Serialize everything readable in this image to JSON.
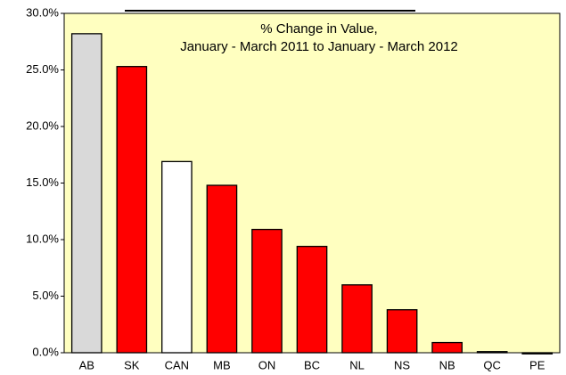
{
  "chart_data": {
    "type": "bar",
    "title": [
      "% Change in Value,",
      "January  -  March 2011 to January -  March 2012"
    ],
    "categories": [
      "AB",
      "SK",
      "CAN",
      "MB",
      "ON",
      "BC",
      "NL",
      "NS",
      "NB",
      "QC",
      "PE"
    ],
    "values": [
      28.2,
      25.3,
      16.9,
      14.8,
      10.9,
      9.4,
      6.0,
      3.8,
      0.9,
      0.1,
      -0.1
    ],
    "colors": [
      "#d9d9d9",
      "#ff0000",
      "#ffffff",
      "#ff0000",
      "#ff0000",
      "#ff0000",
      "#ff0000",
      "#ff0000",
      "#ff0000",
      "#ff0000",
      "#ff0000"
    ],
    "ylim": [
      0,
      30
    ],
    "yticks": [
      {
        "value": 0,
        "label": "0.0%"
      },
      {
        "value": 5,
        "label": "5.0%"
      },
      {
        "value": 10,
        "label": "10.0%"
      },
      {
        "value": 15,
        "label": "15.0%"
      },
      {
        "value": 20,
        "label": "20.0%"
      },
      {
        "value": 25,
        "label": "25.0%"
      },
      {
        "value": 30,
        "label": "30.0%"
      }
    ],
    "grid": false
  }
}
